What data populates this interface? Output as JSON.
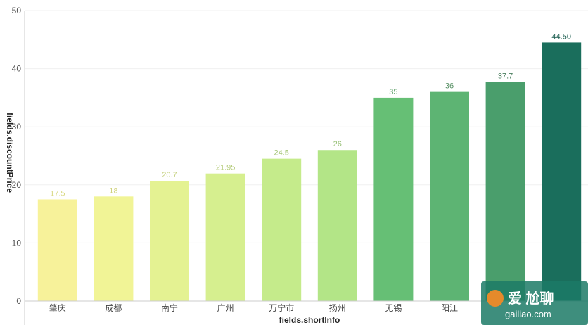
{
  "chart_data": {
    "type": "bar",
    "xlabel": "fields.shortInfo",
    "ylabel": "fields.discountPrice",
    "ylim": [
      0,
      50
    ],
    "yticks": [
      0,
      10,
      20,
      30,
      40,
      50
    ],
    "categories": [
      "肇庆",
      "成都",
      "南宁",
      "广州",
      "万宁市",
      "扬州",
      "无锡",
      "阳江",
      "",
      ""
    ],
    "values": [
      17.5,
      18,
      20.7,
      21.95,
      24.5,
      26,
      35,
      36,
      37.7,
      44.5
    ],
    "value_labels": [
      "17.5",
      "18",
      "20.7",
      "21.95",
      "24.5",
      "26",
      "35",
      "36",
      "37.7",
      "44.50"
    ],
    "colors": [
      "#f7f29a",
      "#f1f496",
      "#e4f292",
      "#d6ef8f",
      "#c5eb8b",
      "#b3e587",
      "#66bf75",
      "#5db473",
      "#4a9e6c",
      "#1a6e5c"
    ],
    "label_colors": [
      "#d8d880",
      "#cfd27c",
      "#c3cf7a",
      "#b4cb79",
      "#a5c678",
      "#96bf75",
      "#5a9e66",
      "#558f63",
      "#4a7e5e",
      "#1a5c4e"
    ],
    "grid": true,
    "legend": "none"
  },
  "watermark": {
    "title": "爱 尬聊",
    "url": "gailiao.com"
  }
}
